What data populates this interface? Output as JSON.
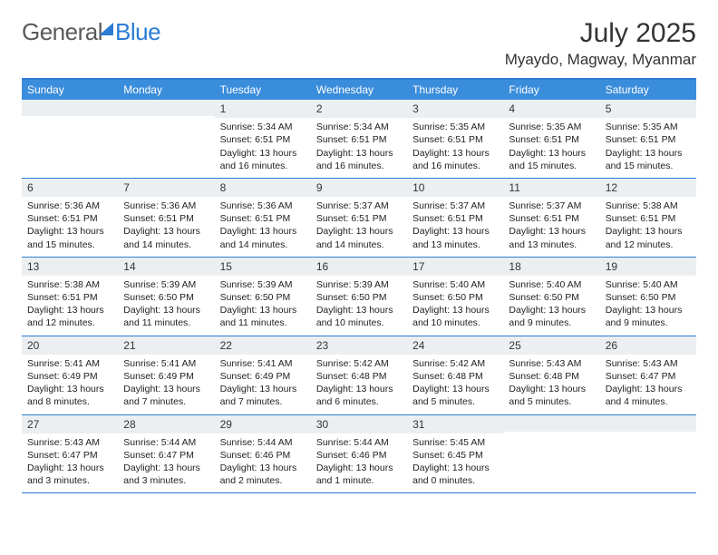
{
  "brand": {
    "part1": "General",
    "part2": "Blue"
  },
  "title": "July 2025",
  "location": "Myaydo, Magway, Myanmar",
  "day_headers": [
    "Sunday",
    "Monday",
    "Tuesday",
    "Wednesday",
    "Thursday",
    "Friday",
    "Saturday"
  ],
  "colors": {
    "header_bg": "#3a8ddb",
    "border": "#2b7cd3",
    "daynum_bg": "#eceff1",
    "text": "#222222",
    "title": "#333333"
  },
  "typography": {
    "title_fontsize": 30,
    "location_fontsize": 17,
    "header_fontsize": 12,
    "daynum_fontsize": 12,
    "body_fontsize": 10.5
  },
  "weeks": [
    [
      {
        "empty": true
      },
      {
        "empty": true
      },
      {
        "n": "1",
        "sr": "Sunrise: 5:34 AM",
        "ss": "Sunset: 6:51 PM",
        "d1": "Daylight: 13 hours",
        "d2": "and 16 minutes."
      },
      {
        "n": "2",
        "sr": "Sunrise: 5:34 AM",
        "ss": "Sunset: 6:51 PM",
        "d1": "Daylight: 13 hours",
        "d2": "and 16 minutes."
      },
      {
        "n": "3",
        "sr": "Sunrise: 5:35 AM",
        "ss": "Sunset: 6:51 PM",
        "d1": "Daylight: 13 hours",
        "d2": "and 16 minutes."
      },
      {
        "n": "4",
        "sr": "Sunrise: 5:35 AM",
        "ss": "Sunset: 6:51 PM",
        "d1": "Daylight: 13 hours",
        "d2": "and 15 minutes."
      },
      {
        "n": "5",
        "sr": "Sunrise: 5:35 AM",
        "ss": "Sunset: 6:51 PM",
        "d1": "Daylight: 13 hours",
        "d2": "and 15 minutes."
      }
    ],
    [
      {
        "n": "6",
        "sr": "Sunrise: 5:36 AM",
        "ss": "Sunset: 6:51 PM",
        "d1": "Daylight: 13 hours",
        "d2": "and 15 minutes."
      },
      {
        "n": "7",
        "sr": "Sunrise: 5:36 AM",
        "ss": "Sunset: 6:51 PM",
        "d1": "Daylight: 13 hours",
        "d2": "and 14 minutes."
      },
      {
        "n": "8",
        "sr": "Sunrise: 5:36 AM",
        "ss": "Sunset: 6:51 PM",
        "d1": "Daylight: 13 hours",
        "d2": "and 14 minutes."
      },
      {
        "n": "9",
        "sr": "Sunrise: 5:37 AM",
        "ss": "Sunset: 6:51 PM",
        "d1": "Daylight: 13 hours",
        "d2": "and 14 minutes."
      },
      {
        "n": "10",
        "sr": "Sunrise: 5:37 AM",
        "ss": "Sunset: 6:51 PM",
        "d1": "Daylight: 13 hours",
        "d2": "and 13 minutes."
      },
      {
        "n": "11",
        "sr": "Sunrise: 5:37 AM",
        "ss": "Sunset: 6:51 PM",
        "d1": "Daylight: 13 hours",
        "d2": "and 13 minutes."
      },
      {
        "n": "12",
        "sr": "Sunrise: 5:38 AM",
        "ss": "Sunset: 6:51 PM",
        "d1": "Daylight: 13 hours",
        "d2": "and 12 minutes."
      }
    ],
    [
      {
        "n": "13",
        "sr": "Sunrise: 5:38 AM",
        "ss": "Sunset: 6:51 PM",
        "d1": "Daylight: 13 hours",
        "d2": "and 12 minutes."
      },
      {
        "n": "14",
        "sr": "Sunrise: 5:39 AM",
        "ss": "Sunset: 6:50 PM",
        "d1": "Daylight: 13 hours",
        "d2": "and 11 minutes."
      },
      {
        "n": "15",
        "sr": "Sunrise: 5:39 AM",
        "ss": "Sunset: 6:50 PM",
        "d1": "Daylight: 13 hours",
        "d2": "and 11 minutes."
      },
      {
        "n": "16",
        "sr": "Sunrise: 5:39 AM",
        "ss": "Sunset: 6:50 PM",
        "d1": "Daylight: 13 hours",
        "d2": "and 10 minutes."
      },
      {
        "n": "17",
        "sr": "Sunrise: 5:40 AM",
        "ss": "Sunset: 6:50 PM",
        "d1": "Daylight: 13 hours",
        "d2": "and 10 minutes."
      },
      {
        "n": "18",
        "sr": "Sunrise: 5:40 AM",
        "ss": "Sunset: 6:50 PM",
        "d1": "Daylight: 13 hours",
        "d2": "and 9 minutes."
      },
      {
        "n": "19",
        "sr": "Sunrise: 5:40 AM",
        "ss": "Sunset: 6:50 PM",
        "d1": "Daylight: 13 hours",
        "d2": "and 9 minutes."
      }
    ],
    [
      {
        "n": "20",
        "sr": "Sunrise: 5:41 AM",
        "ss": "Sunset: 6:49 PM",
        "d1": "Daylight: 13 hours",
        "d2": "and 8 minutes."
      },
      {
        "n": "21",
        "sr": "Sunrise: 5:41 AM",
        "ss": "Sunset: 6:49 PM",
        "d1": "Daylight: 13 hours",
        "d2": "and 7 minutes."
      },
      {
        "n": "22",
        "sr": "Sunrise: 5:41 AM",
        "ss": "Sunset: 6:49 PM",
        "d1": "Daylight: 13 hours",
        "d2": "and 7 minutes."
      },
      {
        "n": "23",
        "sr": "Sunrise: 5:42 AM",
        "ss": "Sunset: 6:48 PM",
        "d1": "Daylight: 13 hours",
        "d2": "and 6 minutes."
      },
      {
        "n": "24",
        "sr": "Sunrise: 5:42 AM",
        "ss": "Sunset: 6:48 PM",
        "d1": "Daylight: 13 hours",
        "d2": "and 5 minutes."
      },
      {
        "n": "25",
        "sr": "Sunrise: 5:43 AM",
        "ss": "Sunset: 6:48 PM",
        "d1": "Daylight: 13 hours",
        "d2": "and 5 minutes."
      },
      {
        "n": "26",
        "sr": "Sunrise: 5:43 AM",
        "ss": "Sunset: 6:47 PM",
        "d1": "Daylight: 13 hours",
        "d2": "and 4 minutes."
      }
    ],
    [
      {
        "n": "27",
        "sr": "Sunrise: 5:43 AM",
        "ss": "Sunset: 6:47 PM",
        "d1": "Daylight: 13 hours",
        "d2": "and 3 minutes."
      },
      {
        "n": "28",
        "sr": "Sunrise: 5:44 AM",
        "ss": "Sunset: 6:47 PM",
        "d1": "Daylight: 13 hours",
        "d2": "and 3 minutes."
      },
      {
        "n": "29",
        "sr": "Sunrise: 5:44 AM",
        "ss": "Sunset: 6:46 PM",
        "d1": "Daylight: 13 hours",
        "d2": "and 2 minutes."
      },
      {
        "n": "30",
        "sr": "Sunrise: 5:44 AM",
        "ss": "Sunset: 6:46 PM",
        "d1": "Daylight: 13 hours",
        "d2": "and 1 minute."
      },
      {
        "n": "31",
        "sr": "Sunrise: 5:45 AM",
        "ss": "Sunset: 6:45 PM",
        "d1": "Daylight: 13 hours",
        "d2": "and 0 minutes."
      },
      {
        "empty": true
      },
      {
        "empty": true
      }
    ]
  ]
}
